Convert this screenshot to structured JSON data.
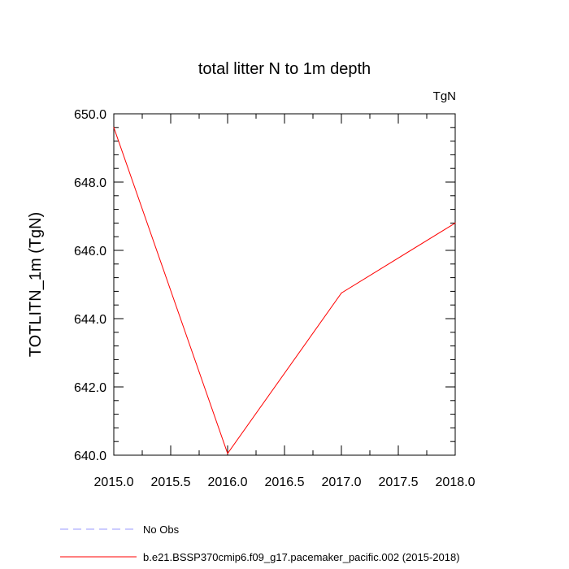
{
  "chart_data": {
    "type": "line",
    "title": "total litter N to 1m depth",
    "units": "TgN",
    "xlabel": "",
    "ylabel": "TOTLITN_1m  (TgN)",
    "xlim": [
      2015.0,
      2018.0
    ],
    "ylim": [
      640.0,
      650.0
    ],
    "xticks": [
      "2015.0",
      "2015.5",
      "2016.0",
      "2016.5",
      "2017.0",
      "2017.5",
      "2018.0"
    ],
    "yticks": [
      "640.0",
      "642.0",
      "644.0",
      "646.0",
      "648.0",
      "650.0"
    ],
    "x": [
      2015,
      2016,
      2017,
      2018
    ],
    "series": [
      {
        "name": "b.e21.BSSP370cmip6.f09_g17.pacemaker_pacific.002 (2015-2018)",
        "values": [
          649.6,
          640.05,
          644.75,
          646.8
        ],
        "color": "#ff0000",
        "style": "solid"
      }
    ],
    "legend": [
      {
        "label": "No Obs",
        "color": "#9999ff",
        "style": "dashed"
      },
      {
        "label": "b.e21.BSSP370cmip6.f09_g17.pacemaker_pacific.002 (2015-2018)",
        "color": "#ff0000",
        "style": "solid"
      }
    ],
    "legend_position": "bottom-left",
    "grid": false
  }
}
